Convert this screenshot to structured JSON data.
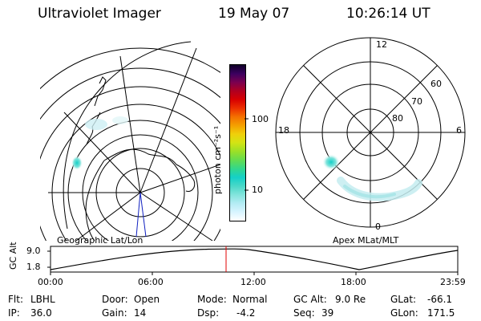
{
  "header": {
    "title": "Ultraviolet Imager",
    "date": "19 May 07",
    "time": "10:26:14 UT"
  },
  "colorbar": {
    "unit_label": "photon cm⁻²s⁻¹",
    "tick_100": "100",
    "tick_10": "10",
    "colors": [
      "#ffffff",
      "#d8f4ff",
      "#b4ecf4",
      "#82e4dc",
      "#4ad8c8",
      "#14d0c8",
      "#32d78c",
      "#64dc50",
      "#9ae028",
      "#d2e414",
      "#f0d00a",
      "#f4a000",
      "#f47000",
      "#ec3000",
      "#d80000",
      "#b00020",
      "#7a0050",
      "#3c0060",
      "#100028"
    ]
  },
  "geo_panel": {
    "label": "Geographic Lat/Lon"
  },
  "mag_panel": {
    "label": "Apex MLat/MLT",
    "mlt_labels": {
      "top": "12",
      "left": "18",
      "right": "6",
      "bottom": "0"
    },
    "mlat_labels": [
      "60",
      "70",
      "80"
    ]
  },
  "altitude_plot": {
    "axis_label": "GC Alt",
    "y_ticks": [
      "9.0",
      "1.8"
    ],
    "x_ticks": [
      "00:00",
      "06:00",
      "12:00",
      "18:00",
      "23:59"
    ],
    "current_time_marker": "10:26:14",
    "marker_color": "#e00000"
  },
  "status": {
    "filter_label": "Flt:",
    "filter_value": "LBHL",
    "ip_label": "IP:",
    "ip_value": "36.0",
    "door_label": "Door:",
    "door_value": "Open",
    "gain_label": "Gain:",
    "gain_value": "14",
    "mode_label": "Mode:",
    "mode_value": "Normal",
    "dsp_label": "Dsp:",
    "dsp_value": "-4.2",
    "gcalt_label": "GC Alt:",
    "gcalt_value": "9.0 Re",
    "seq_label": "Seq:",
    "seq_value": "39",
    "glat_label": "GLat:",
    "glat_value": "-66.1",
    "glon_label": "GLon:",
    "glon_value": "171.5"
  }
}
